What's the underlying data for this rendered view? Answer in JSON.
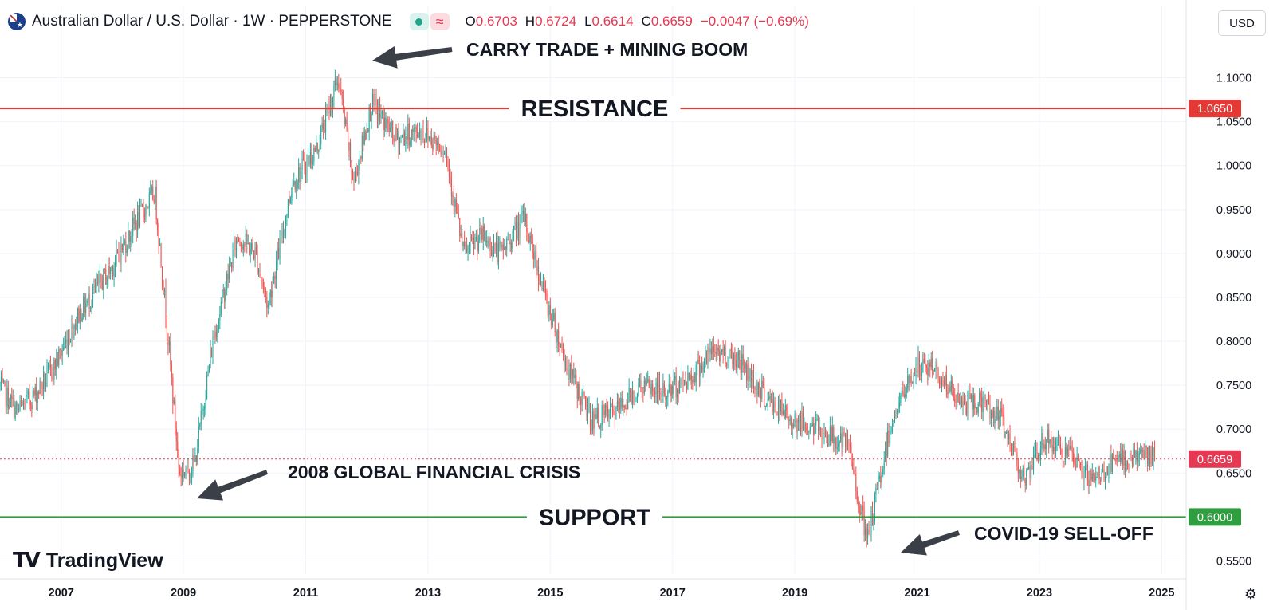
{
  "header": {
    "symbol": "Australian Dollar / U.S. Dollar · 1W · PEPPERSTONE",
    "wave_icon_glyph": "≈",
    "ohlc": {
      "o_label": "O",
      "o_value": "0.6703",
      "h_label": "H",
      "h_value": "0.6724",
      "l_label": "L",
      "l_value": "0.6614",
      "c_label": "C",
      "c_value": "0.6659",
      "change": "−0.0047 (−0.69%)"
    }
  },
  "currency_button": "USD",
  "branding": {
    "mark": "TV",
    "name": "TradingView"
  },
  "icons": {
    "flag": "au-flag-icon",
    "settings": "gear-icon",
    "dot": "green-dot-icon",
    "wave": "wave-icon"
  },
  "colors": {
    "up": "#26a69a",
    "down": "#ef5350",
    "resistance": "#e53935",
    "support": "#2e9e3e",
    "current": "#e53953"
  },
  "chart_data": {
    "type": "candlestick",
    "title": "Australian Dollar / U.S. Dollar · 1W · PEPPERSTONE",
    "x_ticks": [
      "2007",
      "2009",
      "2011",
      "2013",
      "2015",
      "2017",
      "2019",
      "2021",
      "2023",
      "2025"
    ],
    "y_ticks": [
      "1.1000",
      "1.0500",
      "1.0000",
      "0.9500",
      "0.9000",
      "0.8500",
      "0.8000",
      "0.7500",
      "0.7000",
      "0.6500",
      "0.5500"
    ],
    "ylim": [
      0.535,
      1.145
    ],
    "xlim": [
      2006.0,
      2025.4
    ],
    "grid": true,
    "price_series_approx": [
      [
        2006.0,
        0.75
      ],
      [
        2006.3,
        0.72
      ],
      [
        2006.6,
        0.74
      ],
      [
        2006.9,
        0.77
      ],
      [
        2007.3,
        0.83
      ],
      [
        2007.6,
        0.86
      ],
      [
        2007.9,
        0.89
      ],
      [
        2008.2,
        0.93
      ],
      [
        2008.55,
        0.97
      ],
      [
        2008.75,
        0.82
      ],
      [
        2008.95,
        0.65
      ],
      [
        2009.2,
        0.66
      ],
      [
        2009.5,
        0.8
      ],
      [
        2009.9,
        0.92
      ],
      [
        2010.2,
        0.9
      ],
      [
        2010.4,
        0.84
      ],
      [
        2010.8,
        0.98
      ],
      [
        2011.2,
        1.02
      ],
      [
        2011.55,
        1.1
      ],
      [
        2011.8,
        0.98
      ],
      [
        2012.1,
        1.07
      ],
      [
        2012.5,
        1.03
      ],
      [
        2012.9,
        1.04
      ],
      [
        2013.3,
        1.02
      ],
      [
        2013.6,
        0.9
      ],
      [
        2013.9,
        0.92
      ],
      [
        2014.2,
        0.9
      ],
      [
        2014.6,
        0.94
      ],
      [
        2014.9,
        0.86
      ],
      [
        2015.3,
        0.77
      ],
      [
        2015.7,
        0.71
      ],
      [
        2016.1,
        0.72
      ],
      [
        2016.5,
        0.75
      ],
      [
        2016.9,
        0.74
      ],
      [
        2017.3,
        0.76
      ],
      [
        2017.7,
        0.79
      ],
      [
        2018.1,
        0.78
      ],
      [
        2018.6,
        0.73
      ],
      [
        2019.0,
        0.71
      ],
      [
        2019.4,
        0.7
      ],
      [
        2019.9,
        0.68
      ],
      [
        2020.2,
        0.57
      ],
      [
        2020.6,
        0.71
      ],
      [
        2021.0,
        0.77
      ],
      [
        2021.3,
        0.77
      ],
      [
        2021.7,
        0.73
      ],
      [
        2022.1,
        0.73
      ],
      [
        2022.4,
        0.71
      ],
      [
        2022.8,
        0.64
      ],
      [
        2023.1,
        0.69
      ],
      [
        2023.5,
        0.67
      ],
      [
        2023.9,
        0.64
      ],
      [
        2024.2,
        0.66
      ],
      [
        2024.6,
        0.67
      ],
      [
        2024.85,
        0.67
      ],
      [
        2025.0,
        0.6659
      ]
    ],
    "horizontal_lines": [
      {
        "name": "resistance",
        "value": 1.065,
        "label": "RESISTANCE",
        "price_label": "1.0650"
      },
      {
        "name": "support",
        "value": 0.6,
        "label": "SUPPORT",
        "price_label": "0.6000"
      },
      {
        "name": "current",
        "value": 0.6659,
        "price_label": "0.6659"
      }
    ],
    "annotations": [
      {
        "text": "CARRY TRADE + MINING BOOM",
        "x": 2011.6,
        "y": 1.09
      },
      {
        "text": "2008 GLOBAL FINANCIAL CRISIS",
        "x": 2009.2,
        "y": 0.615
      },
      {
        "text": "COVID-19 SELL-OFF",
        "x": 2020.4,
        "y": 0.557
      }
    ]
  }
}
